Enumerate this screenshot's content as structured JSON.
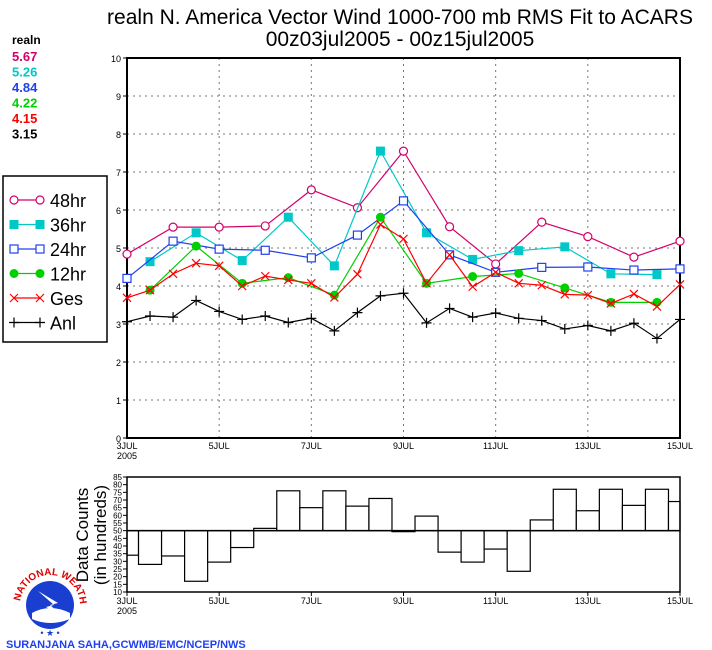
{
  "chart_data": [
    {
      "type": "line",
      "title": "realn N. America Vector Wind 1000-700 mb RMS Fit to ACARS",
      "subtitle": "00z03jul2005 - 00z15jul2005",
      "xlabel": "",
      "ylabel": "",
      "ylim": [
        0,
        10
      ],
      "yticks": [
        "0",
        "1",
        "2",
        "3",
        "4",
        "5",
        "6",
        "7",
        "8",
        "9",
        "10"
      ],
      "x_steps": 25,
      "x_step_hours": 12,
      "xtick_labels": [
        "3JUL",
        "5JUL",
        "7JUL",
        "9JUL",
        "11JUL",
        "13JUL",
        "15JUL"
      ],
      "xtick_year": "2005",
      "grid": true,
      "legend_placement": "left",
      "stats_header": "realn",
      "series": [
        {
          "name": "48hr",
          "color": "#d4006a",
          "marker": "open-circle",
          "mean": "5.67",
          "values": [
            4.84,
            null,
            5.55,
            null,
            5.55,
            null,
            5.58,
            null,
            6.53,
            null,
            6.06,
            null,
            7.55,
            null,
            5.56,
            null,
            4.58,
            null,
            5.68,
            null,
            5.3,
            null,
            4.76,
            null,
            5.18
          ]
        },
        {
          "name": "36hr",
          "color": "#00c8c8",
          "marker": "filled-square",
          "mean": "5.26",
          "values": [
            null,
            4.64,
            null,
            5.4,
            null,
            4.67,
            null,
            5.81,
            null,
            4.53,
            null,
            7.55,
            null,
            5.4,
            null,
            4.7,
            null,
            4.93,
            null,
            5.03,
            null,
            4.32,
            null,
            4.3,
            null
          ]
        },
        {
          "name": "24hr",
          "color": "#2040f0",
          "marker": "open-square",
          "mean": "4.84",
          "values": [
            4.2,
            null,
            5.18,
            null,
            4.97,
            null,
            4.94,
            null,
            4.74,
            null,
            5.34,
            null,
            6.24,
            null,
            4.82,
            null,
            4.36,
            null,
            4.49,
            null,
            4.5,
            null,
            4.42,
            null,
            4.45
          ]
        },
        {
          "name": "12hr",
          "color": "#00d000",
          "marker": "filled-circle",
          "mean": "4.22",
          "values": [
            null,
            3.89,
            null,
            5.05,
            null,
            4.07,
            null,
            4.22,
            null,
            3.76,
            null,
            5.81,
            null,
            4.07,
            null,
            4.25,
            null,
            4.33,
            null,
            3.95,
            null,
            3.57,
            null,
            3.57,
            null
          ]
        },
        {
          "name": "Ges",
          "color": "#ff0000",
          "marker": "x",
          "mean": "4.15",
          "values": [
            3.69,
            3.89,
            4.32,
            4.6,
            4.53,
            4.0,
            4.26,
            4.16,
            4.07,
            3.7,
            4.31,
            5.62,
            5.24,
            4.07,
            4.82,
            3.98,
            4.36,
            4.07,
            4.02,
            3.78,
            3.76,
            3.54,
            3.79,
            3.46,
            4.04
          ]
        },
        {
          "name": "Anl",
          "color": "#000000",
          "marker": "plus",
          "mean": "3.15",
          "values": [
            3.06,
            3.21,
            3.18,
            3.62,
            3.33,
            3.12,
            3.21,
            3.04,
            3.15,
            2.82,
            3.3,
            3.74,
            3.81,
            3.03,
            3.41,
            3.18,
            3.29,
            3.15,
            3.09,
            2.87,
            2.96,
            2.82,
            3.02,
            2.62,
            3.12
          ]
        }
      ]
    },
    {
      "type": "bar",
      "title": "",
      "ylabel": "Data Counts",
      "ylabel2": "(in hundreds)",
      "ylim": [
        10,
        85
      ],
      "baseline": 50,
      "yticks": [
        "10",
        "15",
        "20",
        "25",
        "30",
        "35",
        "40",
        "45",
        "50",
        "55",
        "60",
        "65",
        "70",
        "75",
        "80",
        "85"
      ],
      "xtick_labels": [
        "3JUL",
        "5JUL",
        "7JUL",
        "9JUL",
        "11JUL",
        "13JUL",
        "15JUL"
      ],
      "xtick_year": "2005",
      "values": [
        34,
        28,
        33.5,
        17,
        29.5,
        39,
        51.5,
        76,
        65,
        76,
        66,
        71,
        49.5,
        59.5,
        36,
        29.5,
        38,
        23.5,
        57,
        77,
        63,
        77,
        66.5,
        77,
        69
      ]
    }
  ],
  "footer": {
    "credit": "SURANJANA SAHA,GCWMB/EMC/NCEP/NWS"
  },
  "logo": {
    "text": "NATIONAL WEATHER SERVICE"
  }
}
